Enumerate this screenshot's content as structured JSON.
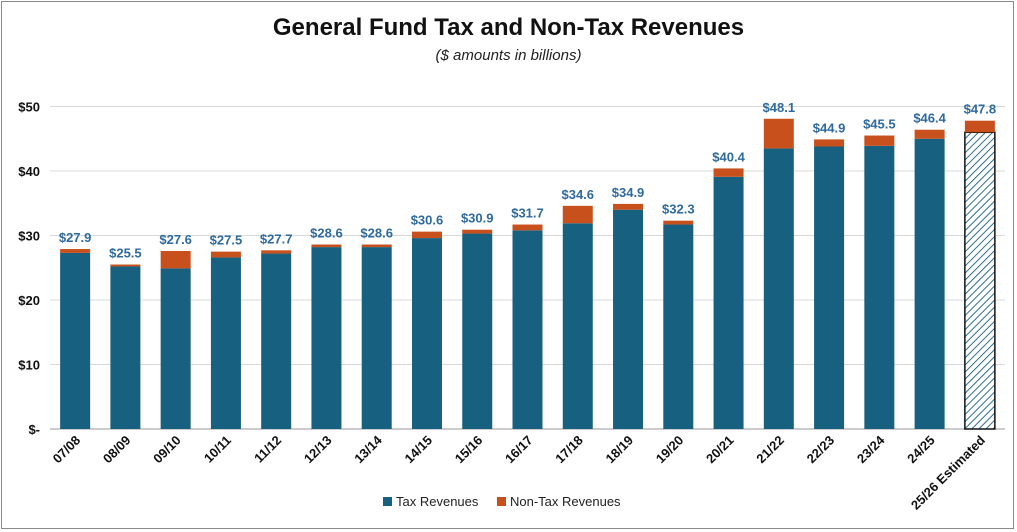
{
  "chart_data": {
    "type": "bar",
    "stacked": true,
    "title": "General Fund Tax and Non-Tax Revenues",
    "subtitle": "($ amounts in billions)",
    "categories": [
      "07/08",
      "08/09",
      "09/10",
      "10/11",
      "11/12",
      "12/13",
      "13/14",
      "14/15",
      "15/16",
      "16/17",
      "17/18",
      "18/19",
      "19/20",
      "20/21",
      "21/22",
      "22/23",
      "23/24",
      "24/25",
      "25/26 Estimated"
    ],
    "series": [
      {
        "name": "Tax Revenues",
        "color": "#17607f",
        "values": [
          27.3,
          25.2,
          24.9,
          26.6,
          27.2,
          28.2,
          28.2,
          29.6,
          30.3,
          30.8,
          31.9,
          34.0,
          31.7,
          39.1,
          43.5,
          43.8,
          43.9,
          45.0,
          46.0
        ]
      },
      {
        "name": "Non-Tax Revenues",
        "color": "#c8501d",
        "values": [
          0.6,
          0.3,
          2.7,
          0.9,
          0.5,
          0.4,
          0.4,
          1.0,
          0.6,
          0.9,
          2.7,
          0.9,
          0.6,
          1.3,
          4.6,
          1.1,
          1.6,
          1.4,
          1.8
        ]
      }
    ],
    "totals": [
      "$27.9",
      "$25.5",
      "$27.6",
      "$27.5",
      "$27.7",
      "$28.6",
      "$28.6",
      "$30.6",
      "$30.9",
      "$31.7",
      "$34.6",
      "$34.9",
      "$32.3",
      "$40.4",
      "$48.1",
      "$44.9",
      "$45.5",
      "$46.4",
      "$47.8"
    ],
    "estimated_last": true,
    "ylim": [
      0,
      50
    ],
    "yticks": [
      0,
      10,
      20,
      30,
      40,
      50
    ],
    "ytick_labels": [
      "$-",
      "$10",
      "$20",
      "$30",
      "$40",
      "$50"
    ],
    "grid": true,
    "legend_position": "bottom",
    "xlabel": "",
    "ylabel": ""
  }
}
